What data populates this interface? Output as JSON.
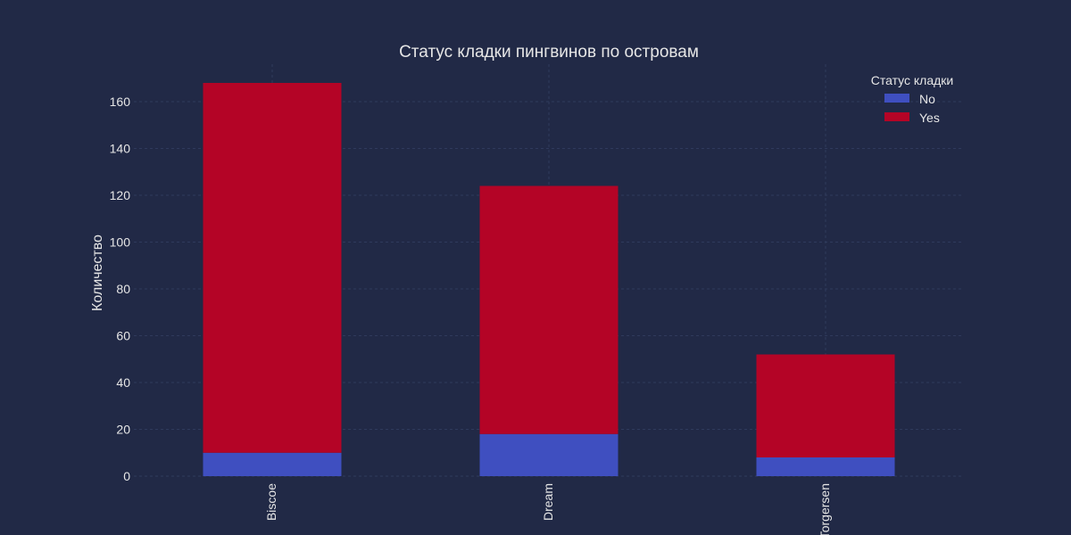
{
  "chart_data": {
    "type": "bar",
    "stacked": true,
    "title": "Статус кладки пингвинов по островам",
    "xlabel": "",
    "ylabel": "Количество",
    "categories": [
      "Biscoe",
      "Dream",
      "Torgersen"
    ],
    "series": [
      {
        "name": "No",
        "values": [
          10,
          18,
          8
        ],
        "color": "#3f4fc0"
      },
      {
        "name": "Yes",
        "values": [
          158,
          106,
          44
        ],
        "color": "#b40426"
      }
    ],
    "ylim": [
      0,
      176
    ],
    "yticks": [
      0,
      20,
      40,
      60,
      80,
      100,
      120,
      140,
      160
    ],
    "legend": {
      "title": "Статус кладки",
      "placement": "top-right"
    },
    "grid": true,
    "background": "#212946"
  }
}
